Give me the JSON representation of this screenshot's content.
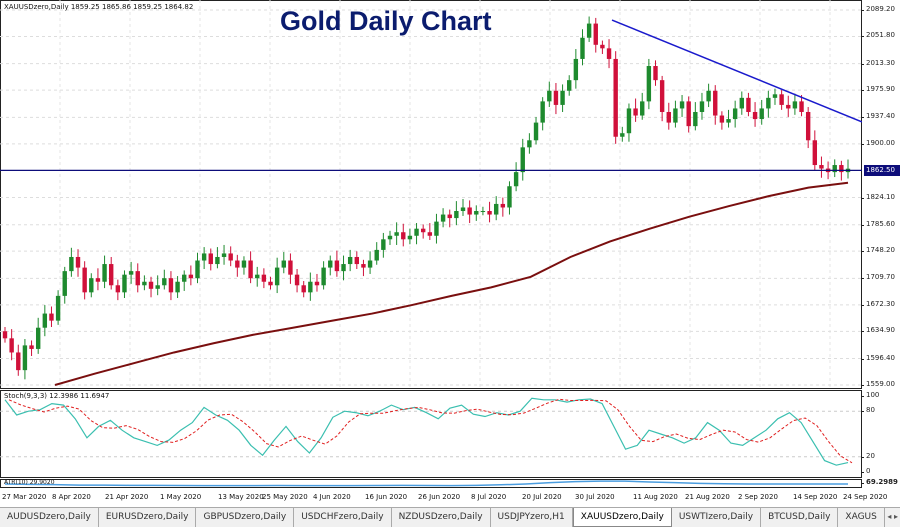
{
  "header": {
    "symbol_info": "XAUUSDzero,Daily  1859.25 1865.86 1859.25 1864.82",
    "title": "Gold Daily Chart"
  },
  "price_axis": {
    "labels": [
      "2089.20",
      "2051.80",
      "2013.30",
      "1975.90",
      "1937.40",
      "1900.00",
      "1862.50",
      "1824.10",
      "1785.60",
      "1748.20",
      "1709.70",
      "1672.30",
      "1634.90",
      "1596.40",
      "1559.00"
    ],
    "range": [
      1559.0,
      2089.2
    ],
    "horizontal_line": "1862.50"
  },
  "stoch": {
    "label": "Stoch(9,3,3) 12.3986 11.6947",
    "axis": [
      "100",
      "80",
      "20",
      "0"
    ],
    "k": [
      95,
      75,
      80,
      82,
      90,
      88,
      70,
      45,
      60,
      68,
      55,
      45,
      40,
      35,
      42,
      55,
      65,
      85,
      75,
      68,
      55,
      35,
      22,
      42,
      60,
      40,
      25,
      45,
      72,
      80,
      78,
      74,
      80,
      88,
      82,
      85,
      78,
      70,
      84,
      88,
      76,
      73,
      78,
      75,
      80,
      97,
      95,
      95,
      92,
      95,
      96,
      90,
      60,
      30,
      35,
      55,
      50,
      45,
      38,
      45,
      65,
      55,
      38,
      35,
      45,
      55,
      70,
      78,
      65,
      40,
      15,
      9,
      12.4
    ]
  },
  "atr": {
    "label": "ATR(10) 29.9020",
    "axis": "69.2989",
    "values": [
      30,
      27,
      25,
      22,
      22,
      20,
      20,
      19,
      18,
      18,
      18,
      19,
      18,
      18,
      18,
      19,
      20,
      19,
      18,
      20,
      24,
      30,
      40,
      48,
      52,
      52,
      45,
      40,
      35,
      32,
      30,
      30,
      30,
      30,
      29.9
    ]
  },
  "date_axis": [
    "27 Mar 2020",
    "8 Apr 2020",
    "21 Apr 2020",
    "1 May 2020",
    "13 May 2020",
    "25 May 2020",
    "4 Jun 2020",
    "16 Jun 2020",
    "26 Jun 2020",
    "8 Jul 2020",
    "20 Jul 2020",
    "30 Jul 2020",
    "11 Aug 2020",
    "21 Aug 2020",
    "2 Sep 2020",
    "14 Sep 2020",
    "24 Sep 2020"
  ],
  "tabs": [
    {
      "label": "AUDUSDzero,Daily"
    },
    {
      "label": "EURUSDzero,Daily"
    },
    {
      "label": "GBPUSDzero,Daily"
    },
    {
      "label": "USDCHFzero,Daily"
    },
    {
      "label": "NZDUSDzero,Daily"
    },
    {
      "label": "USDJPYzero,H1"
    },
    {
      "label": "XAUUSDzero,Daily",
      "active": true
    },
    {
      "label": "USWTIzero,Daily"
    },
    {
      "label": "BTCUSD,Daily"
    },
    {
      "label": "XAGUS"
    }
  ],
  "colors": {
    "bull": "#1e8a2e",
    "bear": "#d0103a",
    "ma": "#7a0f0f",
    "trendline": "#1a1acc",
    "hline": "#0d0d7a",
    "stoch_k": "#3bbfb0",
    "stoch_d": "#e02020",
    "atr": "#4a9de0"
  },
  "chart_data": {
    "type": "candlestick",
    "closes": [
      1625,
      1605,
      1580,
      1615,
      1610,
      1640,
      1660,
      1650,
      1685,
      1720,
      1740,
      1725,
      1690,
      1710,
      1705,
      1730,
      1700,
      1690,
      1715,
      1720,
      1700,
      1705,
      1695,
      1700,
      1710,
      1690,
      1705,
      1715,
      1710,
      1735,
      1745,
      1730,
      1740,
      1745,
      1735,
      1725,
      1735,
      1710,
      1715,
      1705,
      1700,
      1725,
      1735,
      1715,
      1700,
      1690,
      1705,
      1700,
      1725,
      1735,
      1720,
      1730,
      1740,
      1730,
      1725,
      1735,
      1750,
      1765,
      1770,
      1775,
      1765,
      1770,
      1780,
      1775,
      1770,
      1790,
      1800,
      1795,
      1805,
      1810,
      1800,
      1805,
      1805,
      1800,
      1815,
      1810,
      1840,
      1860,
      1895,
      1905,
      1930,
      1960,
      1975,
      1955,
      1975,
      1990,
      2020,
      2050,
      2070,
      2040,
      2035,
      2020,
      1910,
      1915,
      1950,
      1940,
      1960,
      2010,
      1990,
      1945,
      1930,
      1950,
      1960,
      1925,
      1945,
      1960,
      1975,
      1940,
      1930,
      1935,
      1950,
      1965,
      1945,
      1935,
      1950,
      1965,
      1970,
      1955,
      1950,
      1960,
      1945,
      1905,
      1870,
      1865,
      1860,
      1870,
      1860,
      1864.82
    ],
    "moving_average": [
      1559,
      1575,
      1590,
      1605,
      1618,
      1630,
      1640,
      1650,
      1660,
      1672,
      1685,
      1697,
      1712,
      1740,
      1762,
      1780,
      1797,
      1812,
      1826,
      1838,
      1845
    ],
    "trendline": [
      2075,
      1931
    ]
  }
}
